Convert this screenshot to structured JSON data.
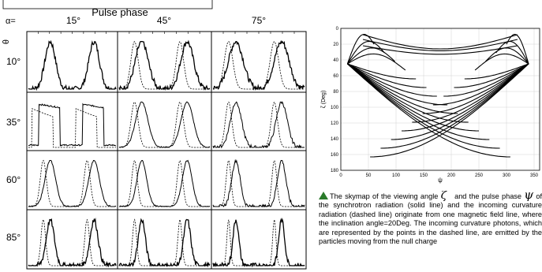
{
  "left_figure": {
    "title": "Pulse phase",
    "alpha_prefix": "α=",
    "theta_symbol": "θ",
    "column_labels": [
      "15°",
      "45°",
      "75°"
    ],
    "row_labels": [
      "10°",
      "35°",
      "60°",
      "85°"
    ]
  },
  "skymap": {
    "ylabel": "ζ (Deg)",
    "xlabel": "ψ",
    "x_ticks": [
      "0",
      "50",
      "100",
      "150",
      "200",
      "250",
      "300",
      "350"
    ],
    "y_ticks": [
      "0",
      "20",
      "40",
      "60",
      "80",
      "100",
      "120",
      "140",
      "160",
      "180"
    ]
  },
  "caption": {
    "p1": "The skymap of the viewing angle",
    "zeta": "ζ",
    "p2": "and the pulse",
    "p3": "phase",
    "psi": "ψ",
    "p4": "of the synchrotron radiation (solid line) and the incoming curvature radiation (dashed line) originate from one magnetic field line, where the inclination angle=20Deg. The incoming curvature photons, which are represented by the points in the dashed line, are emitted by the particles moving from the null charge"
  },
  "chart_data": {
    "type": "line",
    "xlabel": "ψ",
    "ylabel": "ζ (Deg)",
    "xlim": [
      0,
      360
    ],
    "ylim": [
      180,
      0
    ],
    "grid": true
  }
}
